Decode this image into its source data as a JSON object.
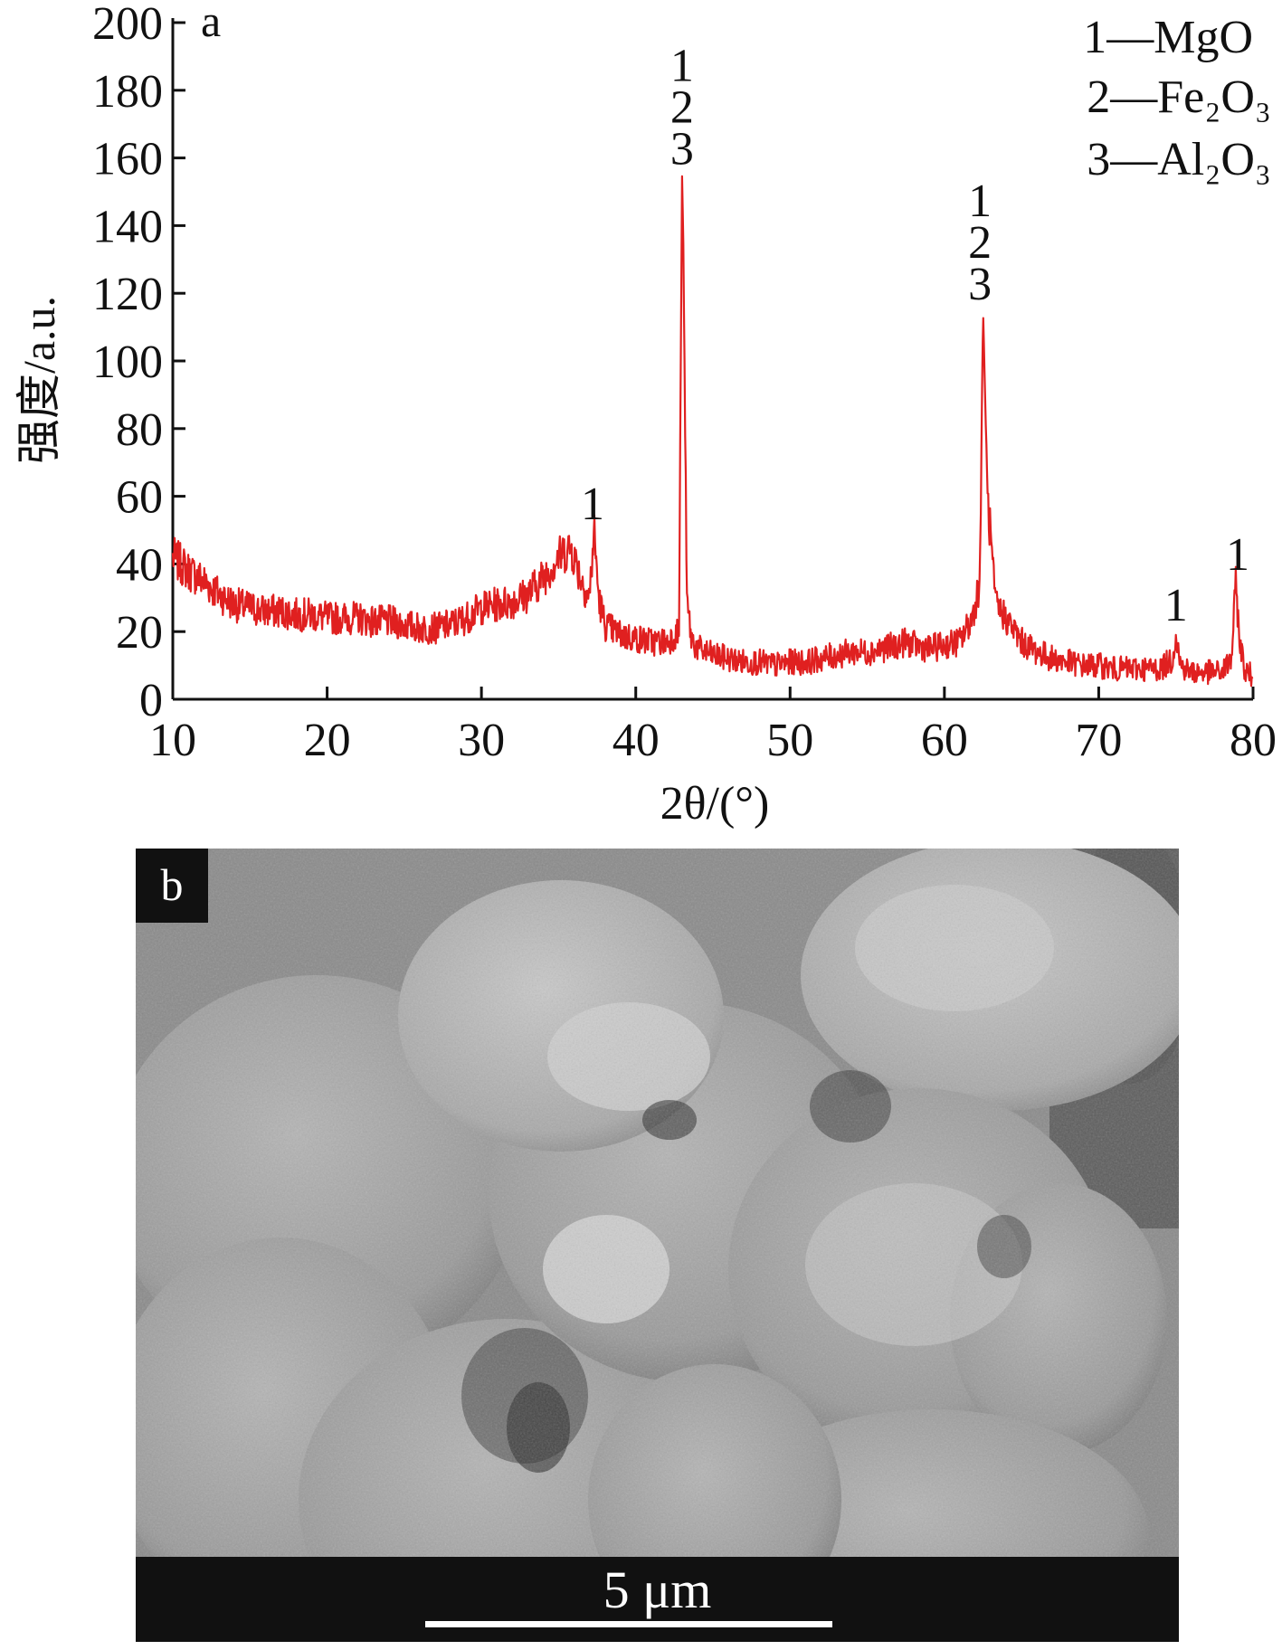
{
  "panel_a": {
    "label": "a",
    "legend": [
      "1—MgO",
      "2—Fe₂O₃",
      "3—Al₂O₃"
    ],
    "line_color": "#e02020"
  },
  "panel_b": {
    "label": "b",
    "scale_bar_text": "5 μm"
  },
  "chart_data": {
    "type": "line",
    "title": "",
    "xlabel": "2θ/(°)",
    "ylabel": "强度/a.u.",
    "xlim": [
      10,
      80
    ],
    "ylim": [
      0,
      200
    ],
    "xticks": [
      10,
      20,
      30,
      40,
      50,
      60,
      70,
      80
    ],
    "yticks": [
      0,
      20,
      40,
      60,
      80,
      100,
      120,
      140,
      160,
      180,
      200
    ],
    "grid": false,
    "legend_position": "top-right",
    "series": [
      {
        "color": "#e02020",
        "x": [
          10,
          11,
          12,
          13,
          14,
          15,
          16,
          17,
          18,
          19,
          20,
          21,
          22,
          23,
          24,
          25,
          26,
          27,
          28,
          29,
          30,
          31,
          32,
          33,
          34,
          35,
          35.8,
          36.5,
          37,
          37.3,
          37.6,
          38,
          39,
          40,
          41,
          42,
          42.8,
          43.0,
          43.1,
          43.3,
          43.6,
          44,
          45,
          46,
          47,
          48,
          49,
          50,
          51,
          52,
          53,
          54,
          55,
          56,
          57,
          57.5,
          58,
          59,
          60,
          61,
          61.8,
          62.3,
          62.5,
          62.8,
          63.3,
          64,
          65,
          66,
          67,
          68,
          69,
          70,
          71,
          72,
          73,
          74,
          74.8,
          75,
          75.3,
          76,
          77,
          78,
          78.6,
          78.9,
          79.1,
          79.5,
          80
        ],
        "y": [
          42,
          38,
          35,
          31,
          28,
          27,
          26,
          26,
          25,
          25,
          24,
          24,
          24,
          23,
          23,
          22,
          21,
          21,
          22,
          24,
          27,
          28,
          29,
          31,
          36,
          42,
          45,
          35,
          30,
          50,
          30,
          22,
          19,
          18,
          17,
          17,
          20,
          155,
          128,
          30,
          18,
          15,
          13,
          12,
          11,
          11,
          10,
          11,
          11,
          12,
          13,
          14,
          14,
          15,
          16,
          17,
          16,
          15,
          16,
          17,
          24,
          35,
          115,
          60,
          28,
          24,
          17,
          14,
          12,
          11,
          10,
          10,
          9,
          9,
          9,
          9,
          12,
          20,
          10,
          8,
          8,
          8,
          12,
          35,
          18,
          8,
          7
        ]
      }
    ],
    "annotations": [
      {
        "x": 37.2,
        "y": 50,
        "text": "1"
      },
      {
        "x": 43.0,
        "y": 155,
        "text": "1\n2\n3"
      },
      {
        "x": 62.3,
        "y": 115,
        "text": "1\n2\n3"
      },
      {
        "x": 75.0,
        "y": 20,
        "text": "1"
      },
      {
        "x": 79.0,
        "y": 35,
        "text": "1"
      }
    ]
  }
}
